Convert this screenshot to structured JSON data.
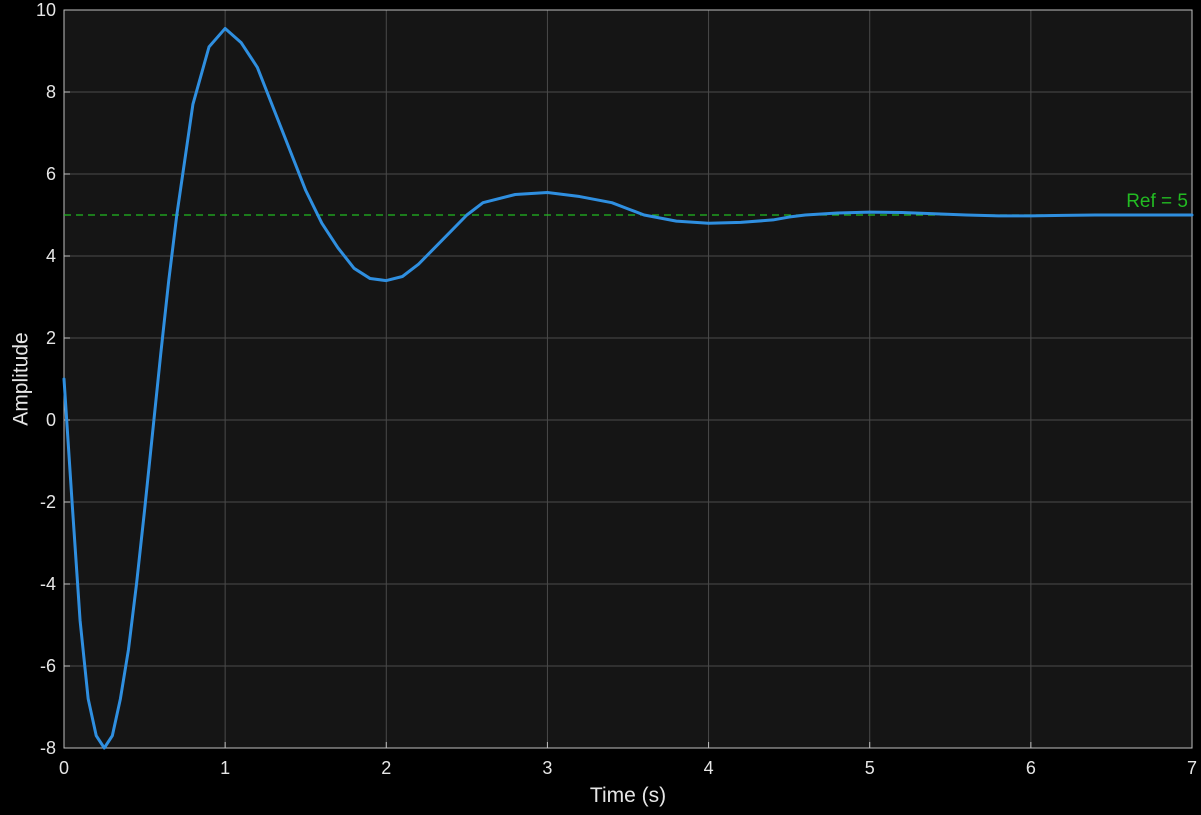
{
  "chart_data": {
    "type": "line",
    "title": "",
    "xlabel": "Time (s)",
    "ylabel": "Amplitude",
    "xlim": [
      0,
      7
    ],
    "ylim": [
      -8,
      10
    ],
    "x_ticks": [
      0,
      1,
      2,
      3,
      4,
      5,
      6,
      7
    ],
    "y_ticks": [
      -8,
      -6,
      -4,
      -2,
      0,
      2,
      4,
      6,
      8,
      10
    ],
    "grid": true,
    "series": [
      {
        "color": "#2f8fe0",
        "x": [
          0,
          0.05,
          0.1,
          0.15,
          0.2,
          0.25,
          0.3,
          0.35,
          0.4,
          0.45,
          0.5,
          0.55,
          0.6,
          0.65,
          0.7,
          0.8,
          0.9,
          1.0,
          1.1,
          1.2,
          1.3,
          1.4,
          1.5,
          1.6,
          1.7,
          1.8,
          1.9,
          2.0,
          2.1,
          2.2,
          2.3,
          2.4,
          2.5,
          2.6,
          2.8,
          3.0,
          3.2,
          3.4,
          3.5,
          3.6,
          3.8,
          4.0,
          4.2,
          4.4,
          4.5,
          4.6,
          4.8,
          5.0,
          5.2,
          5.4,
          5.6,
          5.8,
          6.0,
          6.2,
          6.4,
          6.6,
          6.8,
          7.0
        ],
        "values": [
          1.0,
          -2.0,
          -4.9,
          -6.8,
          -7.7,
          -8.0,
          -7.7,
          -6.8,
          -5.6,
          -4.0,
          -2.2,
          -0.3,
          1.6,
          3.4,
          5.0,
          7.7,
          9.1,
          9.55,
          9.2,
          8.6,
          7.6,
          6.6,
          5.6,
          4.8,
          4.2,
          3.7,
          3.45,
          3.4,
          3.5,
          3.8,
          4.2,
          4.6,
          5.0,
          5.3,
          5.5,
          5.55,
          5.45,
          5.3,
          5.15,
          5.0,
          4.85,
          4.8,
          4.82,
          4.88,
          4.95,
          5.0,
          5.05,
          5.07,
          5.06,
          5.03,
          5.0,
          4.98,
          4.98,
          4.99,
          5.0,
          5.0,
          5.0,
          5.0
        ]
      }
    ],
    "reference": {
      "label": "Ref =  5",
      "value": 5,
      "color": "#22bb22"
    }
  },
  "colors": {
    "background": "#000000",
    "plot_background": "#151515",
    "grid": "#4a4a4a",
    "text": "#e6e6e6",
    "line": "#2f8fe0",
    "reference": "#22bb22"
  }
}
